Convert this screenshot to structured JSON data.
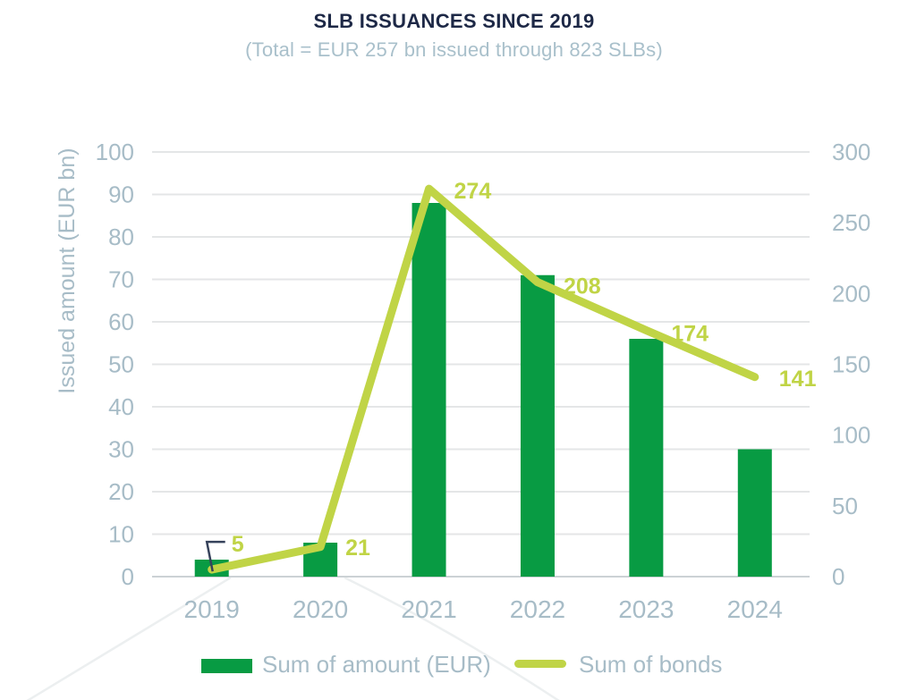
{
  "header": {
    "title": "SLB ISSUANCES SINCE 2019",
    "subtitle": "(Total = EUR 257 bn issued through 823 SLBs)"
  },
  "chart_data": {
    "type": "bar",
    "subtype": "combo-bar-line-dual-axis",
    "title": "SLB ISSUANCES SINCE 2019",
    "subtitle": "(Total = EUR 257 bn issued through 823 SLBs)",
    "categories": [
      "2019",
      "2020",
      "2021",
      "2022",
      "2023",
      "2024"
    ],
    "series": [
      {
        "name": "Sum of amount (EUR)",
        "type": "bar",
        "axis": "left",
        "values": [
          4,
          8,
          88,
          71,
          56,
          30
        ],
        "color": "#089b43"
      },
      {
        "name": "Sum of bonds",
        "type": "line",
        "axis": "right",
        "values": [
          5,
          21,
          274,
          208,
          174,
          141
        ],
        "color": "#c0d446",
        "data_labels": [
          "5",
          "21",
          "274",
          "208",
          "174",
          "141"
        ]
      }
    ],
    "left_axis": {
      "label": "Issued amount (EUR bn)",
      "min": 0,
      "max": 100,
      "step": 10
    },
    "right_axis": {
      "label": "",
      "min": 0,
      "max": 300,
      "step": 50
    },
    "grid": true,
    "legend_position": "bottom",
    "colors": {
      "bar": "#089b43",
      "line": "#c0d446",
      "axis_text": "#a7bcc7",
      "title": "#1d2846",
      "gridline": "#e4e6e7",
      "baseline": "#ccd2d5",
      "leader_line": "#36425b"
    }
  },
  "legend": {
    "items": [
      {
        "label": "Sum of amount (EUR)",
        "swatch": "bar"
      },
      {
        "label": "Sum of bonds",
        "swatch": "line"
      }
    ]
  }
}
